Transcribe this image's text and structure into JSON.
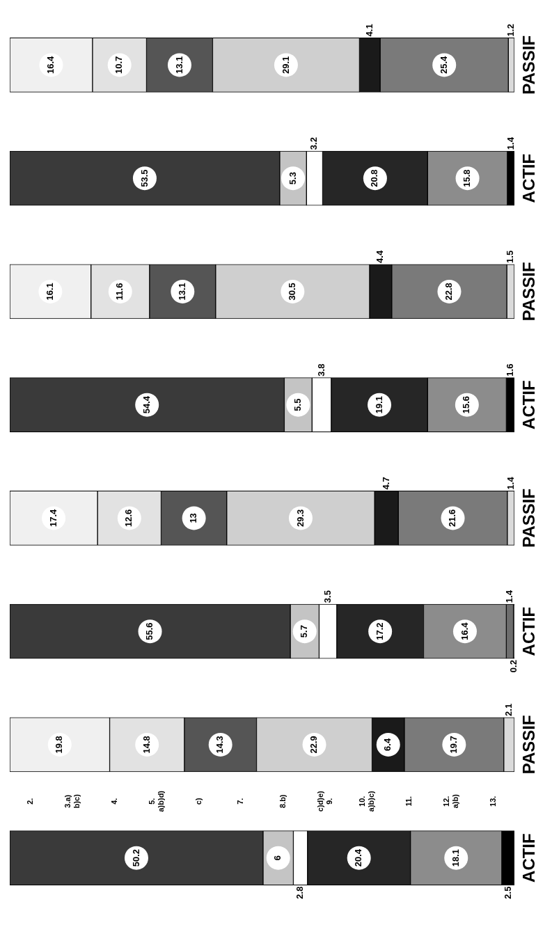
{
  "chart_data": {
    "type": "bar",
    "orientation": "horizontal",
    "stacked": true,
    "data_labels": true,
    "tick_labels": "y",
    "legend": false,
    "categories": [
      "PASSIF",
      "ACTIF",
      "PASSIF",
      "ACTIF",
      "PASSIF",
      "ACTIF",
      "PASSIF",
      "ACTIF"
    ],
    "xlim": [
      0,
      100
    ],
    "series": [
      {
        "color": "#3a3a3a",
        "values": [
          null,
          53.5,
          null,
          54.4,
          null,
          55.6,
          null,
          50.2
        ]
      },
      {
        "color": "#c4c4c4",
        "values": [
          null,
          5.3,
          null,
          5.5,
          null,
          5.7,
          null,
          6
        ]
      },
      {
        "color": "#ffffff",
        "values": [
          null,
          3.2,
          null,
          3.8,
          null,
          3.5,
          null,
          2.8
        ]
      },
      {
        "color": "#262626",
        "values": [
          null,
          20.8,
          null,
          19.1,
          null,
          17.2,
          null,
          20.4
        ]
      },
      {
        "color": "#8c8c8c",
        "values": [
          null,
          15.8,
          null,
          15.6,
          null,
          16.4,
          null,
          18.1
        ]
      },
      {
        "color": "#6e6e6e",
        "values": [
          null,
          null,
          null,
          null,
          null,
          1.4,
          null,
          null
        ]
      },
      {
        "color": "#000000",
        "values": [
          null,
          1.4,
          null,
          1.6,
          null,
          0.2,
          null,
          2.5
        ]
      },
      {
        "color": "#f0f0f0",
        "values": [
          16.4,
          null,
          16.1,
          null,
          17.4,
          null,
          19.8,
          null
        ]
      },
      {
        "color": "#e2e2e2",
        "values": [
          10.7,
          null,
          11.6,
          null,
          12.6,
          null,
          14.8,
          null
        ]
      },
      {
        "color": "#555555",
        "values": [
          13.1,
          null,
          13.1,
          null,
          13,
          null,
          14.3,
          null
        ]
      },
      {
        "color": "#cfcfcf",
        "values": [
          29.1,
          null,
          30.5,
          null,
          29.3,
          null,
          22.9,
          null
        ]
      },
      {
        "color": "#1a1a1a",
        "values": [
          4.1,
          null,
          4.4,
          null,
          4.7,
          null,
          6.4,
          null
        ]
      },
      {
        "color": "#7a7a7a",
        "values": [
          25.4,
          null,
          22.8,
          null,
          21.6,
          null,
          19.7,
          null
        ]
      },
      {
        "color": "#dadada",
        "values": [
          1.2,
          null,
          1.5,
          null,
          1.4,
          null,
          2.1,
          null
        ]
      }
    ],
    "annotations": [
      "2.",
      "3.a)\nb)c)",
      "4.",
      "5.\na)b)d)",
      "c)",
      "7.",
      "8.b)",
      "c)d)e)\n9.",
      "10.\na)b)c)",
      "11.",
      "12.\na)b)",
      "13."
    ]
  }
}
